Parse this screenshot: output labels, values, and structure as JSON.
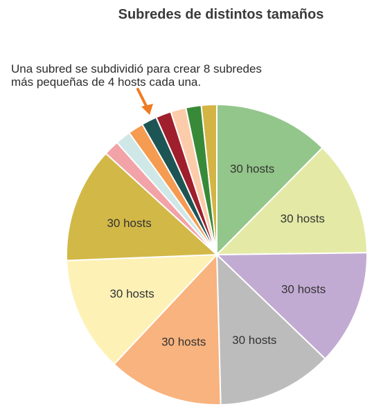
{
  "chart_data": {
    "type": "pie",
    "title": "Subredes de distintos tamaños",
    "annotation": {
      "line1": "Una subred se subdividió para crear 8 subredes",
      "line2": "más pequeñas de 4 hosts cada una."
    },
    "slices": [
      {
        "label": "30 hosts",
        "value": 30,
        "color": "#93c68a"
      },
      {
        "label": "30 hosts",
        "value": 30,
        "color": "#e4eaa6"
      },
      {
        "label": "30 hosts",
        "value": 30,
        "color": "#c2abd3"
      },
      {
        "label": "30 hosts",
        "value": 30,
        "color": "#bdbcbc"
      },
      {
        "label": "30 hosts",
        "value": 30,
        "color": "#f8b37e"
      },
      {
        "label": "30 hosts",
        "value": 30,
        "color": "#fdf1b6"
      },
      {
        "label": "30 hosts",
        "value": 30,
        "color": "#d2b847"
      },
      {
        "label": "",
        "value": 4,
        "color": "#f2a3a8"
      },
      {
        "label": "",
        "value": 4,
        "color": "#cfe8e7"
      },
      {
        "label": "",
        "value": 4,
        "color": "#f59b52"
      },
      {
        "label": "",
        "value": 4,
        "color": "#1d5554"
      },
      {
        "label": "",
        "value": 4,
        "color": "#9f1f2c"
      },
      {
        "label": "",
        "value": 4,
        "color": "#fcccaa"
      },
      {
        "label": "",
        "value": 4,
        "color": "#388a39"
      },
      {
        "label": "",
        "value": 4,
        "color": "#d4b444"
      }
    ],
    "arrow_color": "#f07b22"
  }
}
